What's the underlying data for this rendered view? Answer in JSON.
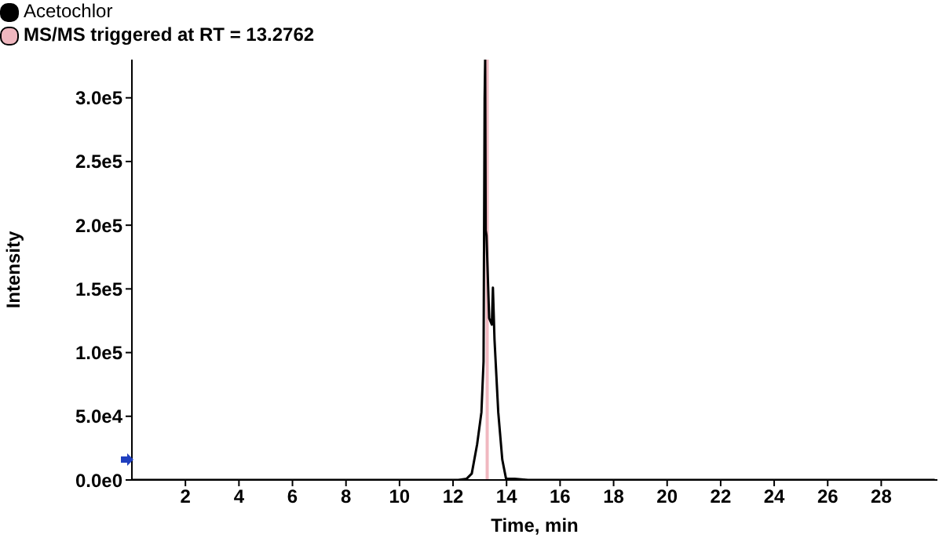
{
  "chart_data": {
    "type": "line",
    "xlabel": "Time, min",
    "ylabel": "Intensity",
    "x": [
      0,
      12.2,
      12.51,
      12.7,
      12.9,
      13.06,
      13.14,
      13.18,
      13.2,
      13.22,
      13.25,
      13.35,
      13.45,
      13.49,
      13.55,
      13.69,
      13.84,
      13.98,
      14.3,
      14.8,
      30
    ],
    "series": [
      {
        "name": "Acetochlor",
        "color": "#000000",
        "values": [
          0,
          0,
          1000,
          5000,
          28000,
          53000,
          93000,
          299000,
          330000,
          196000,
          192000,
          127000,
          122000,
          151000,
          110000,
          53000,
          16000,
          1000,
          1000,
          0,
          0
        ]
      }
    ],
    "ref_lines": [
      {
        "axis": "x",
        "value": 13.2762,
        "label": "MS/MS triggered at RT = 13.2762",
        "color": "#f0b8c0"
      }
    ],
    "xlim": [
      0,
      30.1
    ],
    "xticks": [
      2,
      4,
      6,
      8,
      10,
      12,
      14,
      16,
      18,
      20,
      22,
      24,
      26,
      28
    ],
    "ylim": [
      0,
      330000
    ],
    "yticks": [
      {
        "value": 0,
        "label": "0.0e0"
      },
      {
        "value": 50000,
        "label": "5.0e4"
      },
      {
        "value": 100000,
        "label": "1.0e5"
      },
      {
        "value": 150000,
        "label": "1.5e5"
      },
      {
        "value": 200000,
        "label": "2.0e5"
      },
      {
        "value": 250000,
        "label": "2.5e5"
      },
      {
        "value": 300000,
        "label": "3.0e5"
      }
    ],
    "grid": false,
    "legend": "top left",
    "marker": "none",
    "line_style": "solid"
  }
}
